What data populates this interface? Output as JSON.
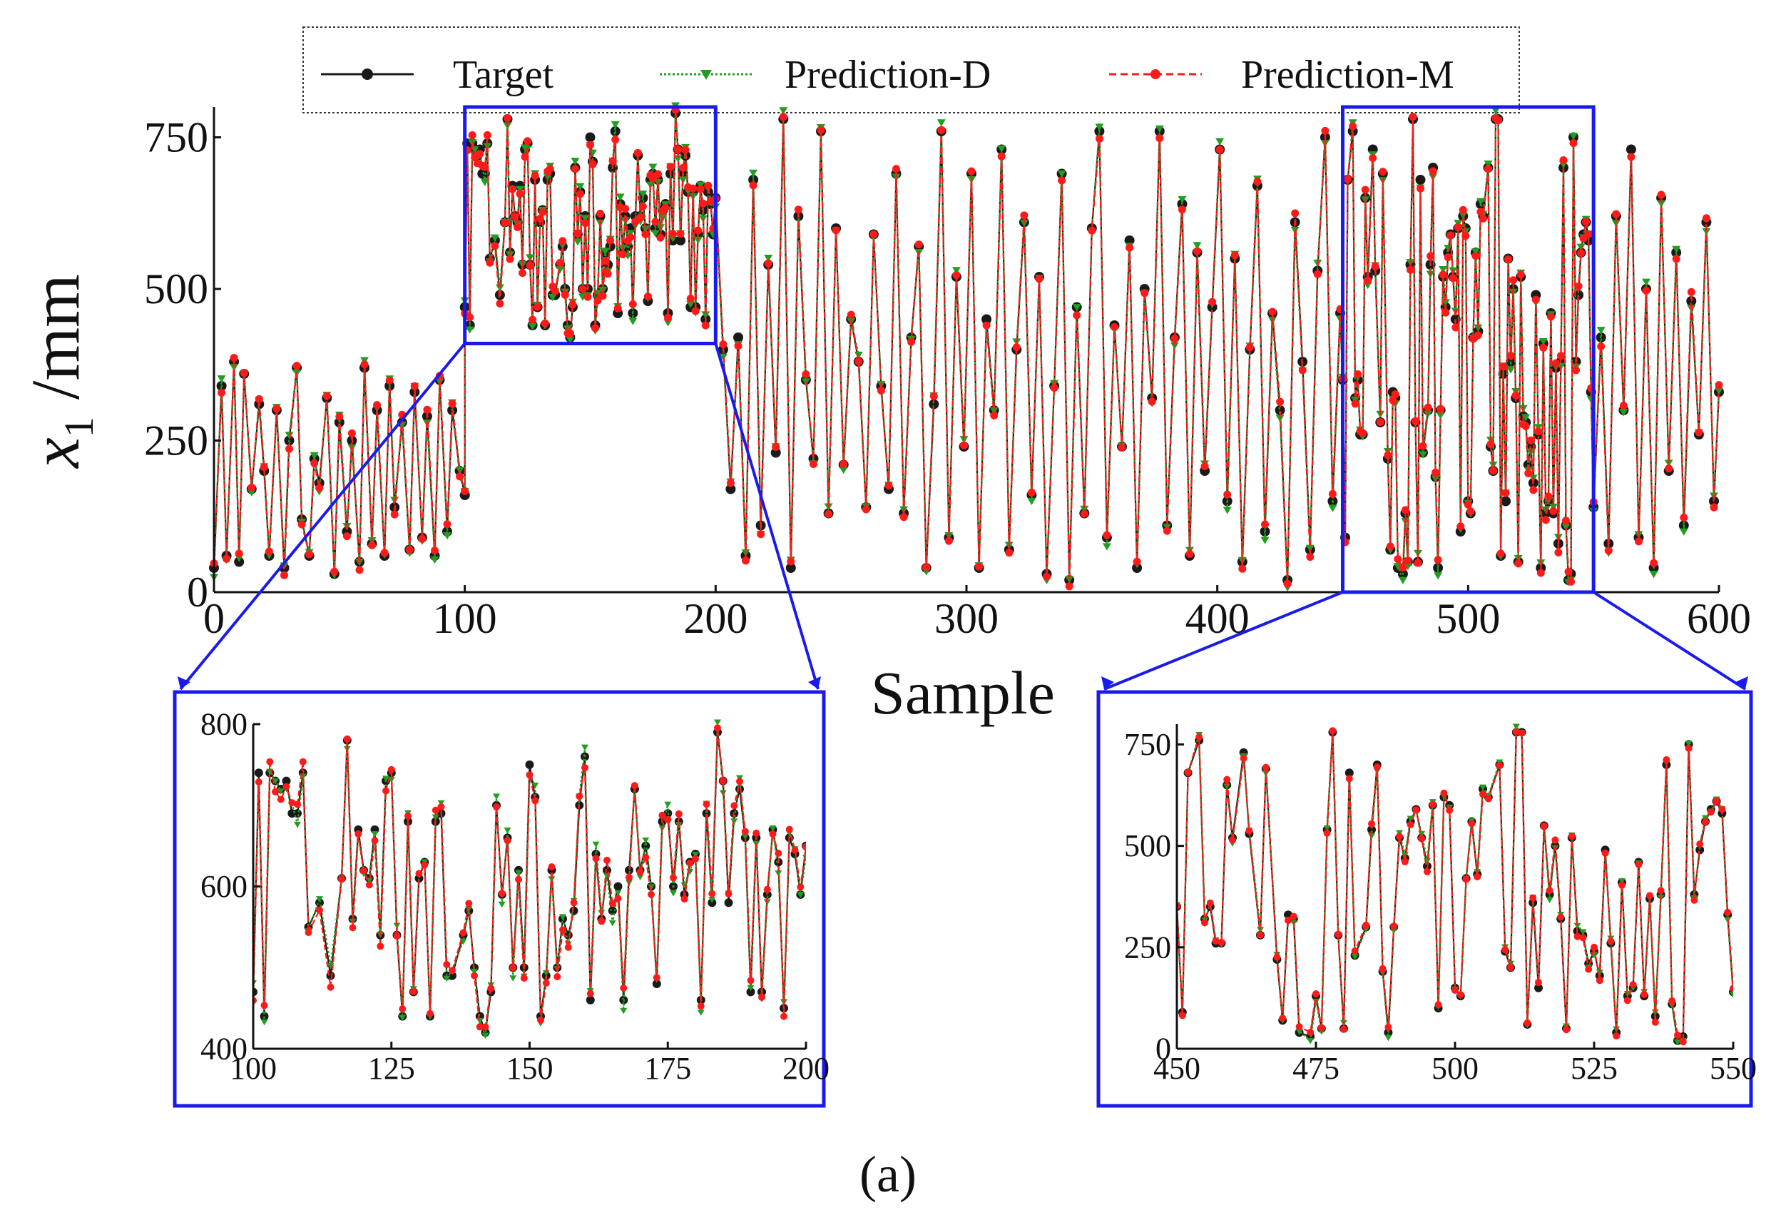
{
  "figure": {
    "caption": "(a)"
  },
  "chart_data": [
    {
      "id": "main",
      "type": "line",
      "xlabel": "Sample",
      "ylabel_main": "x",
      "ylabel_sub": "1",
      "ylabel_unit": " /mm",
      "xlim": [
        0,
        600
      ],
      "ylim": [
        0,
        800
      ],
      "xticks": [
        "0",
        "100",
        "200",
        "300",
        "400",
        "500",
        "600"
      ],
      "yticks": [
        "0",
        "250",
        "500",
        "750"
      ],
      "legend": [
        "Target",
        "Prediction-D",
        "Prediction-M"
      ],
      "colors": {
        "target": "#1a1a1a",
        "pred_d": "#1f9e1f",
        "pred_m": "#ff1a1a",
        "zoom": "#1a1aee"
      },
      "zoom_regions": [
        {
          "x": [
            100,
            200
          ],
          "y": [
            410,
            800
          ]
        },
        {
          "x": [
            450,
            550
          ],
          "y": [
            0,
            800
          ]
        }
      ],
      "series": [
        {
          "name": "Target",
          "x": [
            0,
            3,
            5,
            8,
            10,
            12,
            15,
            18,
            20,
            22,
            25,
            28,
            30,
            33,
            35,
            38,
            40,
            42,
            45,
            48,
            50,
            53,
            55,
            58,
            60,
            63,
            65,
            68,
            70,
            72,
            75,
            78,
            80,
            83,
            85,
            88,
            90,
            93,
            95,
            98,
            100,
            100,
            101,
            102,
            103,
            104,
            105,
            106,
            107,
            108,
            109,
            110,
            112,
            114,
            116,
            117,
            118,
            119,
            120,
            121,
            122,
            123,
            124,
            125,
            126,
            127,
            128,
            129,
            130,
            131,
            132,
            133,
            134,
            135,
            136,
            138,
            139,
            140,
            141,
            142,
            143,
            144,
            145,
            146,
            147,
            148,
            149,
            150,
            151,
            152,
            153,
            154,
            155,
            156,
            157,
            158,
            159,
            160,
            161,
            162,
            163,
            164,
            165,
            166,
            167,
            168,
            169,
            170,
            171,
            172,
            173,
            174,
            175,
            176,
            177,
            178,
            179,
            180,
            181,
            182,
            183,
            184,
            185,
            186,
            187,
            188,
            189,
            190,
            191,
            192,
            193,
            194,
            195,
            196,
            197,
            198,
            199,
            200,
            203,
            206,
            209,
            212,
            215,
            218,
            221,
            224,
            227,
            230,
            233,
            236,
            239,
            242,
            245,
            248,
            251,
            254,
            257,
            260,
            263,
            266,
            269,
            272,
            275,
            278,
            281,
            284,
            287,
            290,
            293,
            296,
            299,
            302,
            305,
            308,
            311,
            314,
            317,
            320,
            323,
            326,
            329,
            332,
            335,
            338,
            341,
            344,
            347,
            350,
            353,
            356,
            359,
            362,
            365,
            368,
            371,
            374,
            377,
            380,
            383,
            386,
            389,
            392,
            395,
            398,
            401,
            404,
            407,
            410,
            413,
            416,
            419,
            422,
            425,
            428,
            431,
            434,
            437,
            440,
            443,
            446,
            449,
            450,
            451,
            452,
            454,
            455,
            456,
            457,
            458,
            459,
            460,
            462,
            463,
            465,
            466,
            468,
            469,
            470,
            471,
            472,
            474,
            475,
            476,
            477,
            478,
            479,
            480,
            481,
            482,
            484,
            485,
            486,
            487,
            488,
            489,
            490,
            491,
            492,
            493,
            494,
            495,
            496,
            497,
            498,
            499,
            500,
            501,
            502,
            503,
            504,
            505,
            506,
            508,
            509,
            510,
            511,
            512,
            513,
            514,
            515,
            516,
            517,
            518,
            519,
            520,
            521,
            522,
            523,
            524,
            525,
            526,
            527,
            528,
            529,
            530,
            531,
            532,
            533,
            534,
            535,
            536,
            537,
            538,
            539,
            540,
            541,
            542,
            543,
            544,
            545,
            546,
            547,
            548,
            549,
            550,
            553,
            556,
            559,
            562,
            565,
            568,
            571,
            574,
            577,
            580,
            583,
            586,
            589,
            592,
            595,
            598,
            600
          ],
          "y": [
            40,
            340,
            60,
            380,
            50,
            360,
            170,
            310,
            200,
            60,
            300,
            40,
            250,
            370,
            120,
            60,
            220,
            180,
            320,
            30,
            280,
            100,
            250,
            50,
            370,
            80,
            300,
            60,
            340,
            140,
            280,
            70,
            330,
            90,
            290,
            60,
            350,
            100,
            300,
            200,
            160,
            470,
            740,
            440,
            740,
            730,
            720,
            730,
            690,
            690,
            740,
            550,
            580,
            490,
            610,
            780,
            560,
            670,
            620,
            610,
            670,
            540,
            730,
            740,
            540,
            440,
            680,
            470,
            610,
            630,
            440,
            680,
            690,
            490,
            490,
            540,
            570,
            500,
            440,
            420,
            470,
            700,
            590,
            660,
            500,
            620,
            500,
            750,
            710,
            440,
            490,
            620,
            500,
            560,
            540,
            570,
            700,
            760,
            460,
            640,
            560,
            620,
            570,
            600,
            460,
            620,
            720,
            620,
            650,
            600,
            480,
            680,
            690,
            600,
            680,
            590,
            630,
            640,
            460,
            690,
            580,
            790,
            730,
            580,
            690,
            720,
            660,
            470,
            660,
            470,
            590,
            670,
            630,
            450,
            660,
            640,
            590,
            650,
            400,
            170,
            420,
            60,
            680,
            110,
            540,
            230,
            780,
            40,
            620,
            350,
            220,
            760,
            130,
            600,
            210,
            450,
            380,
            140,
            590,
            340,
            170,
            690,
            130,
            420,
            570,
            40,
            310,
            760,
            90,
            520,
            240,
            690,
            40,
            450,
            300,
            730,
            70,
            400,
            610,
            160,
            520,
            30,
            340,
            690,
            20,
            470,
            130,
            600,
            760,
            90,
            440,
            240,
            580,
            40,
            500,
            320,
            760,
            110,
            420,
            640,
            60,
            560,
            200,
            470,
            730,
            150,
            550,
            50,
            400,
            670,
            100,
            460,
            300,
            20,
            610,
            380,
            70,
            530,
            750,
            150,
            460,
            350,
            90,
            680,
            760,
            320,
            350,
            260,
            260,
            650,
            520,
            730,
            530,
            280,
            690,
            220,
            70,
            330,
            320,
            40,
            30,
            130,
            50,
            540,
            780,
            280,
            50,
            680,
            230,
            300,
            540,
            700,
            190,
            40,
            300,
            520,
            470,
            560,
            590,
            520,
            450,
            600,
            100,
            620,
            600,
            150,
            130,
            420,
            560,
            430,
            640,
            620,
            700,
            240,
            200,
            780,
            780,
            60,
            360,
            150,
            550,
            380,
            500,
            320,
            50,
            520,
            290,
            280,
            210,
            240,
            180,
            490,
            260,
            40,
            410,
            130,
            150,
            460,
            130,
            370,
            80,
            380,
            700,
            110,
            20,
            30,
            750,
            380,
            490,
            560,
            590,
            610,
            580,
            330,
            140,
            420,
            80,
            620,
            300,
            730,
            90,
            500,
            40,
            650,
            200,
            560,
            110,
            480,
            260,
            610,
            150,
            330
          ]
        },
        {
          "name": "Prediction-D",
          "x": [],
          "y": []
        },
        {
          "name": "Prediction-M",
          "x": [],
          "y": []
        }
      ]
    },
    {
      "id": "inset-left",
      "type": "line",
      "xlim": [
        100,
        200
      ],
      "ylim": [
        400,
        800
      ],
      "xticks": [
        "100",
        "125",
        "150",
        "175",
        "200"
      ],
      "yticks": [
        "400",
        "600",
        "800"
      ]
    },
    {
      "id": "inset-right",
      "type": "line",
      "xlim": [
        450,
        550
      ],
      "ylim": [
        0,
        800
      ],
      "xticks": [
        "450",
        "475",
        "500",
        "525",
        "550"
      ],
      "yticks": [
        "0",
        "250",
        "500",
        "750"
      ]
    }
  ]
}
